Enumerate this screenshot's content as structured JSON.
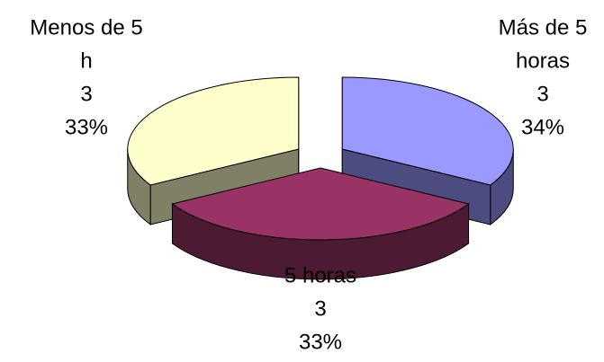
{
  "chart_data": {
    "type": "pie",
    "style": "3d-exploded",
    "legend": "none",
    "slices": [
      {
        "name": "Más de 5 horas",
        "value": 3,
        "percent": "34%",
        "label_lines": [
          "Más de 5",
          "horas",
          "3",
          "34%"
        ],
        "color_top": "#9999ff",
        "color_side": "#4c4c80"
      },
      {
        "name": "5 horas",
        "value": 3,
        "percent": "33%",
        "label_lines": [
          "5 horas",
          "3",
          "33%"
        ],
        "color_top": "#993366",
        "color_side": "#4c1a33"
      },
      {
        "name": "Menos de 5 h",
        "value": 3,
        "percent": "33%",
        "label_lines": [
          "Menos de 5",
          "h",
          "3",
          "33%"
        ],
        "color_top": "#ffffcc",
        "color_side": "#808066"
      }
    ]
  }
}
